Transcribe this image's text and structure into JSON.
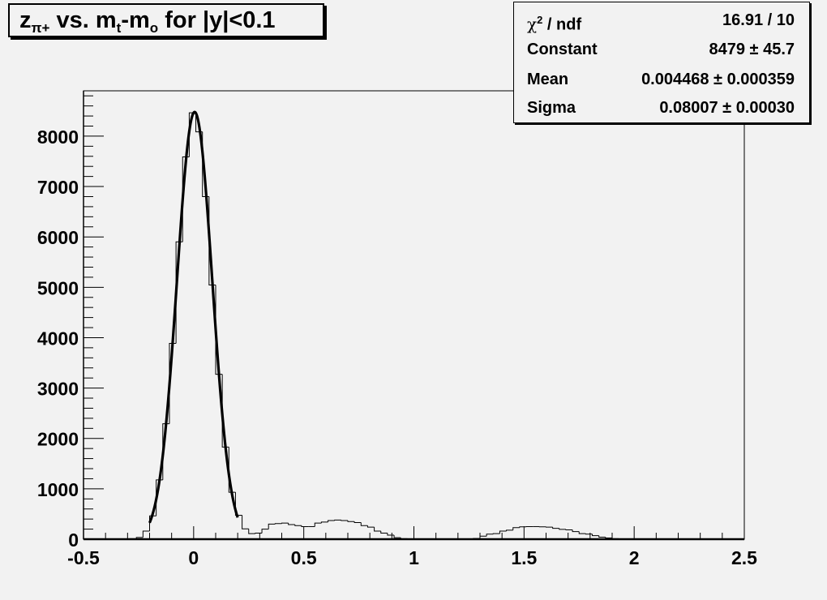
{
  "chart_data": {
    "type": "bar",
    "title": "z",
    "title_sub": "π+",
    "title_rest": " vs. m",
    "title_sub2": "t",
    "title_rest2": "-m",
    "title_sub3": "o",
    "title_rest3": " for |y|<0.1",
    "xlim": [
      -0.5,
      2.5
    ],
    "ylim": [
      0,
      8900
    ],
    "x_ticks": [
      "-0.5",
      "0",
      "0.5",
      "1",
      "1.5",
      "2",
      "2.5"
    ],
    "x_tick_values": [
      -0.5,
      0,
      0.5,
      1,
      1.5,
      2,
      2.5
    ],
    "y_ticks": [
      "0",
      "1000",
      "2000",
      "3000",
      "4000",
      "5000",
      "6000",
      "7000",
      "8000"
    ],
    "y_tick_values": [
      0,
      1000,
      2000,
      3000,
      4000,
      5000,
      6000,
      7000,
      8000
    ],
    "histogram": {
      "bin_low": -0.5,
      "bin_width": 0.03,
      "values": [
        0,
        0,
        0,
        0,
        0,
        0,
        0,
        10,
        35,
        160,
        463,
        1177,
        2291,
        3886,
        5903,
        7589,
        8463,
        8086,
        6800,
        5046,
        3274,
        1829,
        931,
        474,
        206,
        110,
        120,
        200,
        300,
        310,
        320,
        290,
        270,
        250,
        250,
        320,
        340,
        370,
        380,
        370,
        350,
        330,
        270,
        240,
        160,
        120,
        80,
        30,
        10,
        0,
        0,
        0,
        0,
        0,
        0,
        0,
        0,
        0,
        5,
        15,
        60,
        100,
        110,
        160,
        180,
        230,
        245,
        250,
        250,
        245,
        240,
        215,
        195,
        185,
        150,
        110,
        100,
        70,
        40,
        25,
        10,
        0,
        0,
        0,
        0,
        0,
        0,
        0,
        0,
        0,
        0,
        0,
        0,
        0,
        0,
        0,
        0,
        0,
        0,
        0
      ]
    },
    "fit": {
      "type": "gaus",
      "constant": 8479,
      "mean": 0.004468,
      "sigma": 0.08007,
      "range": [
        -0.2,
        0.2
      ]
    },
    "grid": false,
    "legend": "top-right",
    "colors": {
      "background": "#f2f2f2",
      "line": "#000000"
    }
  },
  "stats": [
    {
      "key_main": "χ",
      "key_sup": "2",
      "key_rest": " / ndf",
      "value": "16.91 / 10"
    },
    {
      "key": "Constant",
      "value": "8479 ± 45.7"
    },
    {
      "key": "Mean",
      "value": "0.004468 ± 0.000359"
    },
    {
      "key": "Sigma",
      "value": "0.08007 ± 0.00030"
    }
  ]
}
